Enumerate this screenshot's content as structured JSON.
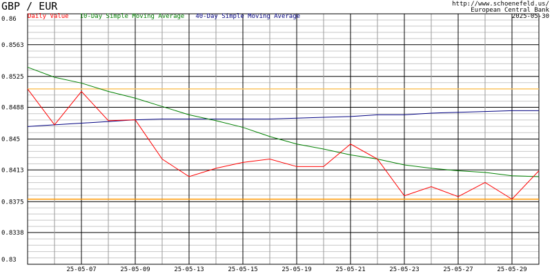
{
  "chart_data": {
    "type": "line",
    "title": "GBP / EUR",
    "source_url": "http://www.schoenefeld.us/",
    "source": "European Central Bank",
    "date": "2025-05-30",
    "categories": [
      null,
      null,
      "25-05-07",
      null,
      "25-05-09",
      null,
      "25-05-13",
      null,
      "25-05-15",
      null,
      "25-05-19",
      null,
      "25-05-21",
      null,
      "25-05-23",
      null,
      "25-05-27",
      null,
      "25-05-29",
      null
    ],
    "series": [
      {
        "name": "Daily Value",
        "color": "#ff0000",
        "values": [
          0.851,
          0.8467,
          0.8507,
          0.8472,
          0.8473,
          0.8426,
          0.8405,
          0.8415,
          0.8422,
          0.8426,
          0.8417,
          0.8417,
          0.8444,
          0.8426,
          0.8382,
          0.8393,
          0.8381,
          0.8398,
          0.8378,
          0.8412
        ]
      },
      {
        "name": "10-Day Simple Moving Average",
        "color": "#008000",
        "values": [
          0.8536,
          0.8524,
          0.8517,
          0.8507,
          0.8499,
          0.8489,
          0.8479,
          0.8472,
          0.8464,
          0.8453,
          0.8444,
          0.8438,
          0.8431,
          0.8426,
          0.8419,
          0.8415,
          0.8412,
          0.841,
          0.8406,
          0.8405
        ]
      },
      {
        "name": "40-Day Simple Moving Average",
        "color": "#000080",
        "values": [
          0.8465,
          0.8467,
          0.8469,
          0.8471,
          0.8473,
          0.8474,
          0.8474,
          0.8474,
          0.8474,
          0.8474,
          0.8475,
          0.8476,
          0.8477,
          0.8479,
          0.8479,
          0.8481,
          0.8482,
          0.8483,
          0.8484,
          0.8484
        ]
      }
    ],
    "ylim": [
      0.83,
      0.86
    ],
    "yticks": [
      0.86,
      0.8563,
      0.8525,
      0.8488,
      0.845,
      0.8413,
      0.8375,
      0.8338,
      0.83
    ],
    "grid": true
  }
}
